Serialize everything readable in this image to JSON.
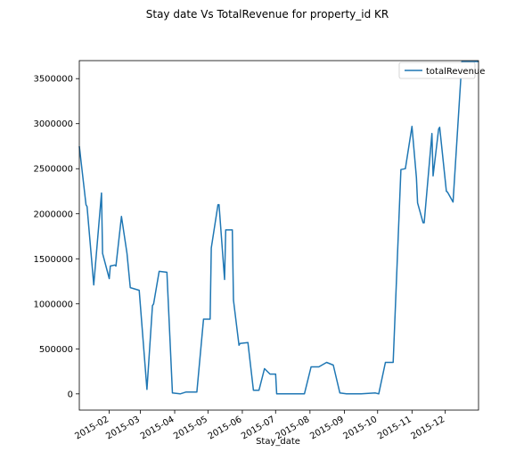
{
  "chart_data": {
    "type": "line",
    "title": "Stay date Vs TotalRevenue for property_id KR",
    "xlabel": "Stay_date",
    "ylabel": "",
    "x_type": "date",
    "xlim": [
      "2015-01-05",
      "2015-12-31"
    ],
    "ylim": [
      -180000,
      3700000
    ],
    "y_ticks": [
      0,
      500000,
      1000000,
      1500000,
      2000000,
      2500000,
      3000000,
      3500000
    ],
    "y_tick_labels": [
      "0",
      "500000",
      "1000000",
      "1500000",
      "2000000",
      "2500000",
      "3000000",
      "3500000"
    ],
    "x_ticks": [
      "2015-02-01",
      "2015-03-01",
      "2015-04-01",
      "2015-05-01",
      "2015-06-01",
      "2015-07-01",
      "2015-08-01",
      "2015-09-01",
      "2015-10-01",
      "2015-11-01",
      "2015-12-01"
    ],
    "x_tick_labels": [
      "2015-02",
      "2015-03",
      "2015-04",
      "2015-05",
      "2015-06",
      "2015-07",
      "2015-08",
      "2015-09",
      "2015-10",
      "2015-11",
      "2015-12"
    ],
    "legend": {
      "position": "top-right",
      "entries": [
        "totalRevenue"
      ]
    },
    "grid": false,
    "colors": {
      "series": "#1f77b4"
    },
    "series": [
      {
        "name": "totalRevenue",
        "x": [
          "2015-01-05",
          "2015-01-11",
          "2015-01-12",
          "2015-01-18",
          "2015-01-25",
          "2015-01-26",
          "2015-02-01",
          "2015-02-02",
          "2015-02-06",
          "2015-02-07",
          "2015-02-12",
          "2015-02-17",
          "2015-02-20",
          "2015-02-28",
          "2015-03-07",
          "2015-03-12",
          "2015-03-13",
          "2015-03-18",
          "2015-03-25",
          "2015-03-30",
          "2015-04-06",
          "2015-04-11",
          "2015-04-16",
          "2015-04-21",
          "2015-04-27",
          "2015-04-28",
          "2015-05-03",
          "2015-05-04",
          "2015-05-10",
          "2015-05-11",
          "2015-05-16",
          "2015-05-17",
          "2015-05-23",
          "2015-05-24",
          "2015-05-29",
          "2015-05-30",
          "2015-06-06",
          "2015-06-11",
          "2015-06-12",
          "2015-06-16",
          "2015-06-21",
          "2015-06-26",
          "2015-07-01",
          "2015-07-02",
          "2015-07-07",
          "2015-07-21",
          "2015-07-27",
          "2015-08-02",
          "2015-08-09",
          "2015-08-16",
          "2015-08-22",
          "2015-08-28",
          "2015-09-03",
          "2015-09-10",
          "2015-09-16",
          "2015-09-29",
          "2015-10-02",
          "2015-10-08",
          "2015-10-15",
          "2015-10-22",
          "2015-10-26",
          "2015-11-01",
          "2015-11-05",
          "2015-11-06",
          "2015-11-11",
          "2015-11-12",
          "2015-11-19",
          "2015-11-20",
          "2015-11-25",
          "2015-11-26",
          "2015-12-02",
          "2015-12-03",
          "2015-12-08",
          "2015-12-16",
          "2015-12-21",
          "2015-12-27",
          "2015-12-31"
        ],
        "values": [
          2750000,
          2100000,
          2080000,
          1210000,
          2230000,
          1560000,
          1280000,
          1420000,
          1430000,
          1420000,
          1970000,
          1560000,
          1180000,
          1150000,
          50000,
          980000,
          1000000,
          1360000,
          1350000,
          10000,
          0,
          20000,
          20000,
          20000,
          830000,
          830000,
          830000,
          1620000,
          2100000,
          2100000,
          1270000,
          1820000,
          1820000,
          1040000,
          540000,
          560000,
          570000,
          40000,
          40000,
          40000,
          280000,
          220000,
          220000,
          0,
          0,
          0,
          0,
          300000,
          300000,
          350000,
          320000,
          10000,
          0,
          0,
          0,
          10000,
          0,
          350000,
          350000,
          2490000,
          2500000,
          2970000,
          2400000,
          2120000,
          1900000,
          1900000,
          2890000,
          2420000,
          2940000,
          2960000,
          2250000,
          2240000,
          2130000,
          3690000,
          3690000,
          3690000,
          3690000
        ]
      }
    ]
  }
}
